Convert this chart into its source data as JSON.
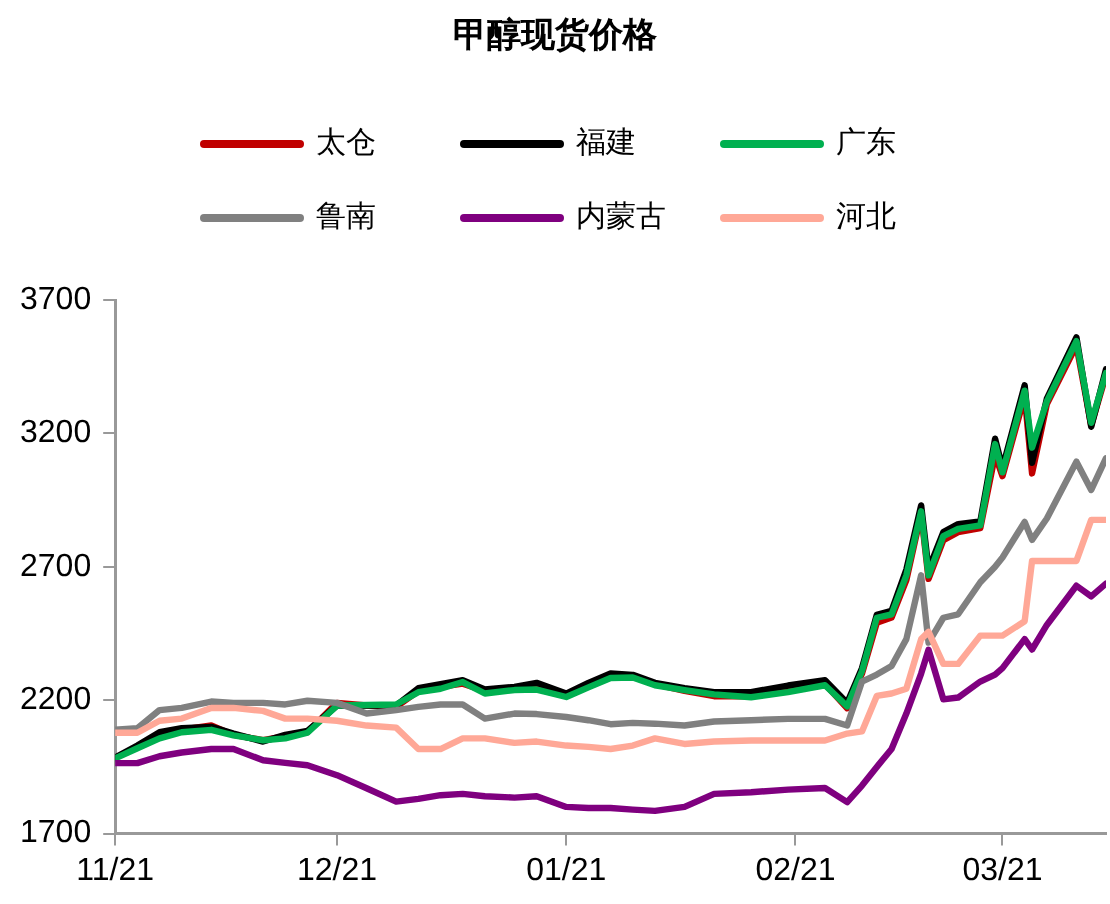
{
  "chart_data": {
    "type": "line",
    "title": "甲醇现货价格",
    "x": [
      "2021-11-01",
      "2021-11-04",
      "2021-11-07",
      "2021-11-10",
      "2021-11-14",
      "2021-11-17",
      "2021-11-21",
      "2021-11-24",
      "2021-11-27",
      "2021-12-01",
      "2021-12-05",
      "2021-12-09",
      "2021-12-12",
      "2021-12-15",
      "2021-12-18",
      "2021-12-21",
      "2021-12-25",
      "2021-12-28",
      "2022-01-01",
      "2022-01-04",
      "2022-01-07",
      "2022-01-10",
      "2022-01-13",
      "2022-01-17",
      "2022-01-21",
      "2022-01-26",
      "2022-01-31",
      "2022-02-05",
      "2022-02-08",
      "2022-02-10",
      "2022-02-12",
      "2022-02-14",
      "2022-02-16",
      "2022-02-18",
      "2022-02-19",
      "2022-02-21",
      "2022-02-23",
      "2022-02-26",
      "2022-02-28",
      "2022-03-01",
      "2022-03-04",
      "2022-03-05",
      "2022-03-07",
      "2022-03-11",
      "2022-03-13",
      "2022-03-15"
    ],
    "series": [
      {
        "name": "太仓",
        "color": "#c00000",
        "values": [
          null,
          null,
          2075,
          2090,
          2105,
          2070,
          2050,
          2065,
          2080,
          2190,
          2180,
          2175,
          2235,
          2250,
          2262,
          2235,
          2245,
          2255,
          2215,
          2255,
          2290,
          2290,
          2260,
          2235,
          2215,
          2215,
          2235,
          2260,
          2170,
          2300,
          2490,
          2510,
          2650,
          2900,
          2655,
          2800,
          2830,
          2845,
          3120,
          3040,
          3340,
          3050,
          3310,
          3530,
          3230,
          3420
        ]
      },
      {
        "name": "福建",
        "color": "#000000",
        "values": [
          1985,
          2030,
          2080,
          2095,
          2100,
          2075,
          2045,
          2070,
          2085,
          2180,
          2180,
          2180,
          2245,
          2260,
          2275,
          2240,
          2250,
          2265,
          2225,
          2265,
          2300,
          2295,
          2265,
          2245,
          2230,
          2230,
          2255,
          2275,
          2190,
          2320,
          2520,
          2535,
          2690,
          2930,
          2690,
          2830,
          2860,
          2870,
          3180,
          3070,
          3380,
          3090,
          3330,
          3560,
          3225,
          3440
        ]
      },
      {
        "name": "广东",
        "color": "#00b050",
        "values": [
          1982,
          2020,
          2057,
          2080,
          2089,
          2068,
          2050,
          2057,
          2078,
          2180,
          2182,
          2184,
          2230,
          2243,
          2268,
          2225,
          2238,
          2240,
          2212,
          2248,
          2283,
          2285,
          2256,
          2238,
          2222,
          2211,
          2230,
          2256,
          2177,
          2309,
          2509,
          2522,
          2668,
          2908,
          2668,
          2815,
          2842,
          2855,
          3160,
          3054,
          3360,
          3147,
          3320,
          3546,
          3240,
          3426
        ]
      },
      {
        "name": "鲁南",
        "color": "#808080",
        "values": [
          2089,
          2095,
          2163,
          2171,
          2195,
          2190,
          2190,
          2184,
          2198,
          2190,
          2150,
          2163,
          2175,
          2184,
          2184,
          2131,
          2150,
          2148,
          2137,
          2125,
          2110,
          2115,
          2112,
          2105,
          2120,
          2125,
          2130,
          2130,
          2105,
          2270,
          2296,
          2328,
          2429,
          2668,
          2416,
          2509,
          2522,
          2642,
          2700,
          2735,
          2868,
          2801,
          2881,
          3094,
          2988,
          3107
        ]
      },
      {
        "name": "内蒙古",
        "color": "#7f007f",
        "values": [
          1964,
          1964,
          1990,
          2004,
          2017,
          2017,
          1975,
          1965,
          1956,
          1919,
          1870,
          1820,
          1830,
          1844,
          1849,
          1840,
          1835,
          1840,
          1800,
          1796,
          1796,
          1790,
          1785,
          1800,
          1849,
          1855,
          1865,
          1871,
          1818,
          1880,
          1950,
          2017,
          2150,
          2300,
          2389,
          2203,
          2210,
          2270,
          2296,
          2320,
          2429,
          2390,
          2482,
          2629,
          2589,
          2637
        ]
      },
      {
        "name": "河北",
        "color": "#ffa897",
        "values": [
          2078,
          2078,
          2123,
          2131,
          2171,
          2171,
          2160,
          2131,
          2131,
          2123,
          2105,
          2097,
          2017,
          2017,
          2057,
          2057,
          2040,
          2045,
          2030,
          2025,
          2017,
          2030,
          2057,
          2036,
          2045,
          2049,
          2049,
          2049,
          2075,
          2083,
          2216,
          2225,
          2243,
          2429,
          2456,
          2336,
          2336,
          2442,
          2442,
          2442,
          2496,
          2722,
          2722,
          2722,
          2876,
          2876
        ]
      }
    ],
    "xlim": [
      "2021-11-01",
      "2022-03-15"
    ],
    "xticks": [
      {
        "value": "2021-11-01",
        "label": "11/21"
      },
      {
        "value": "2021-12-01",
        "label": "12/21"
      },
      {
        "value": "2022-01-01",
        "label": "01/21"
      },
      {
        "value": "2022-02-01",
        "label": "02/21"
      },
      {
        "value": "2022-03-01",
        "label": "03/21"
      }
    ],
    "ylim": [
      1700,
      3700
    ],
    "yticks": [
      1700,
      2200,
      2700,
      3200,
      3700
    ],
    "grid": false,
    "legend": "top",
    "marker": "none",
    "line_style": "solid"
  }
}
